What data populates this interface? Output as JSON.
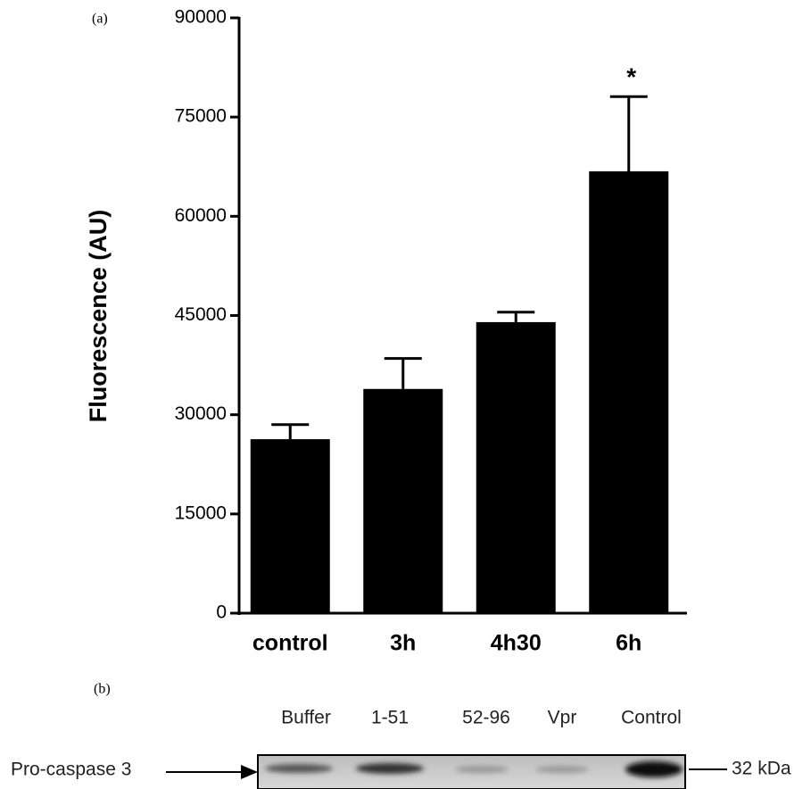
{
  "chart_data": {
    "type": "bar",
    "panel_label": "(a)",
    "y_label": "Fluorescence (AU)",
    "categories": [
      "control",
      "3h",
      "4h30",
      "6h"
    ],
    "values": [
      26300,
      33900,
      44000,
      66800
    ],
    "errors": [
      2200,
      4600,
      1500,
      11300
    ],
    "significance": [
      null,
      null,
      null,
      "*"
    ],
    "color": "#000000",
    "ylim": [
      0,
      90000
    ],
    "yticks": [
      0,
      15000,
      30000,
      45000,
      60000,
      75000,
      90000
    ],
    "grid": false
  },
  "blot": {
    "panel_label": "(b)",
    "lanes": [
      "Buffer",
      "1-51",
      "52-96",
      "Vpr",
      "Control"
    ],
    "band_label": "Pro-caspase 3",
    "marker": "32 kDa"
  }
}
